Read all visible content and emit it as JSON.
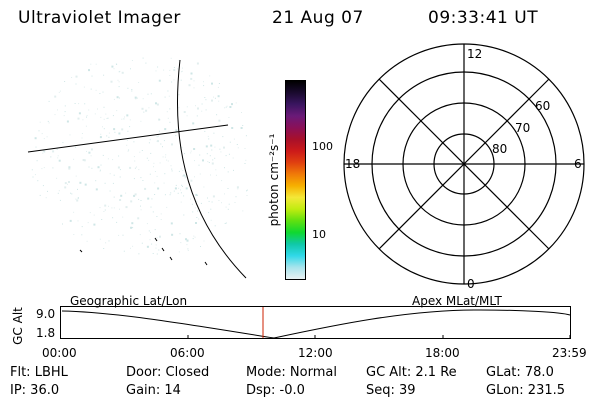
{
  "header": {
    "title": "Ultraviolet Imager",
    "date": "21 Aug 07",
    "time": "09:33:41 UT"
  },
  "colorbar": {
    "label": "photon cm⁻²s⁻¹",
    "ticks": [
      "100",
      "10"
    ],
    "colors": [
      "#000000",
      "#1a0a2e",
      "#3a1560",
      "#6a1a78",
      "#8a1058",
      "#a8102a",
      "#cc1a1a",
      "#e04010",
      "#f07a08",
      "#f6b000",
      "#f4e838",
      "#c0ec10",
      "#60e010",
      "#10d830",
      "#10c8a8",
      "#30d8e8",
      "#a8e4ec",
      "#e8f0f2"
    ]
  },
  "polar": {
    "labels_mlt": [
      "12",
      "6",
      "18",
      "0"
    ],
    "labels_lat": [
      "60",
      "70",
      "80"
    ]
  },
  "timeline": {
    "left_label": "Geographic Lat/Lon",
    "right_label": "Apex MLat/MLT",
    "axis_label": "GC Alt",
    "y_ticks": [
      "9.0",
      "1.8"
    ],
    "x_ticks": [
      "00:00",
      "06:00",
      "12:00",
      "18:00",
      "23:59"
    ],
    "marker_time": "09:33:41",
    "marker_color": "#cc2200"
  },
  "status": {
    "row1": [
      "Flt: LBHL",
      "Door: Closed",
      "Mode: Normal",
      "GC Alt: 2.1 Re",
      "GLat:  78.0"
    ],
    "row2": [
      "IP: 36.0",
      "Gain: 14",
      "Dsp:   -0.0",
      "Seq: 39",
      "GLon: 231.5"
    ]
  }
}
